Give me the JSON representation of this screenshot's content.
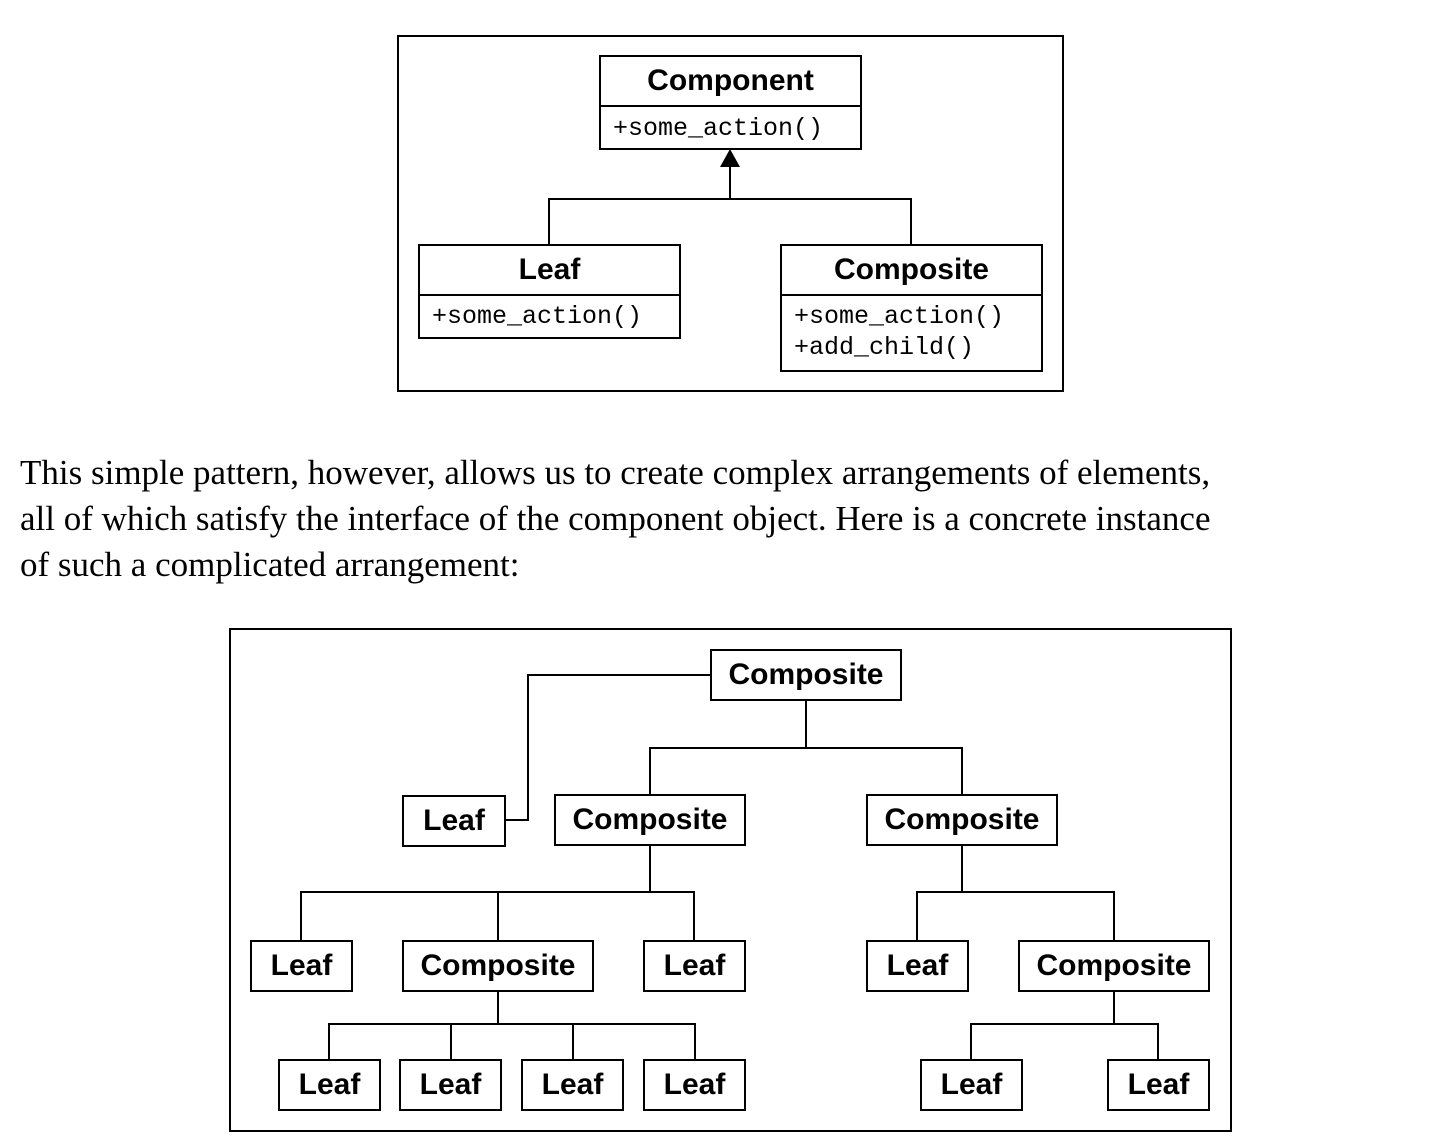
{
  "uml": {
    "component": {
      "title": "Component",
      "methods": [
        "+some_action()"
      ]
    },
    "leaf": {
      "title": "Leaf",
      "methods": [
        "+some_action()"
      ]
    },
    "composite": {
      "title": "Composite",
      "methods": [
        "+some_action()",
        "+add_child()"
      ]
    }
  },
  "paragraph": {
    "line1": "This simple pattern, however, allows us to create complex arrangements of elements,",
    "line2": "all of which satisfy the interface of the component object. Here is a concrete instance",
    "line3": "of such a complicated arrangement:"
  },
  "tree": {
    "root": "Composite",
    "level1": {
      "leaf": "Leaf",
      "composite_left": "Composite",
      "composite_right": "Composite"
    },
    "level2": {
      "leaf_a": "Leaf",
      "composite_mid": "Composite",
      "leaf_b": "Leaf",
      "leaf_c": "Leaf",
      "composite_right": "Composite"
    },
    "level3": {
      "leaf_1": "Leaf",
      "leaf_2": "Leaf",
      "leaf_3": "Leaf",
      "leaf_4": "Leaf",
      "leaf_5": "Leaf",
      "leaf_6": "Leaf"
    }
  }
}
